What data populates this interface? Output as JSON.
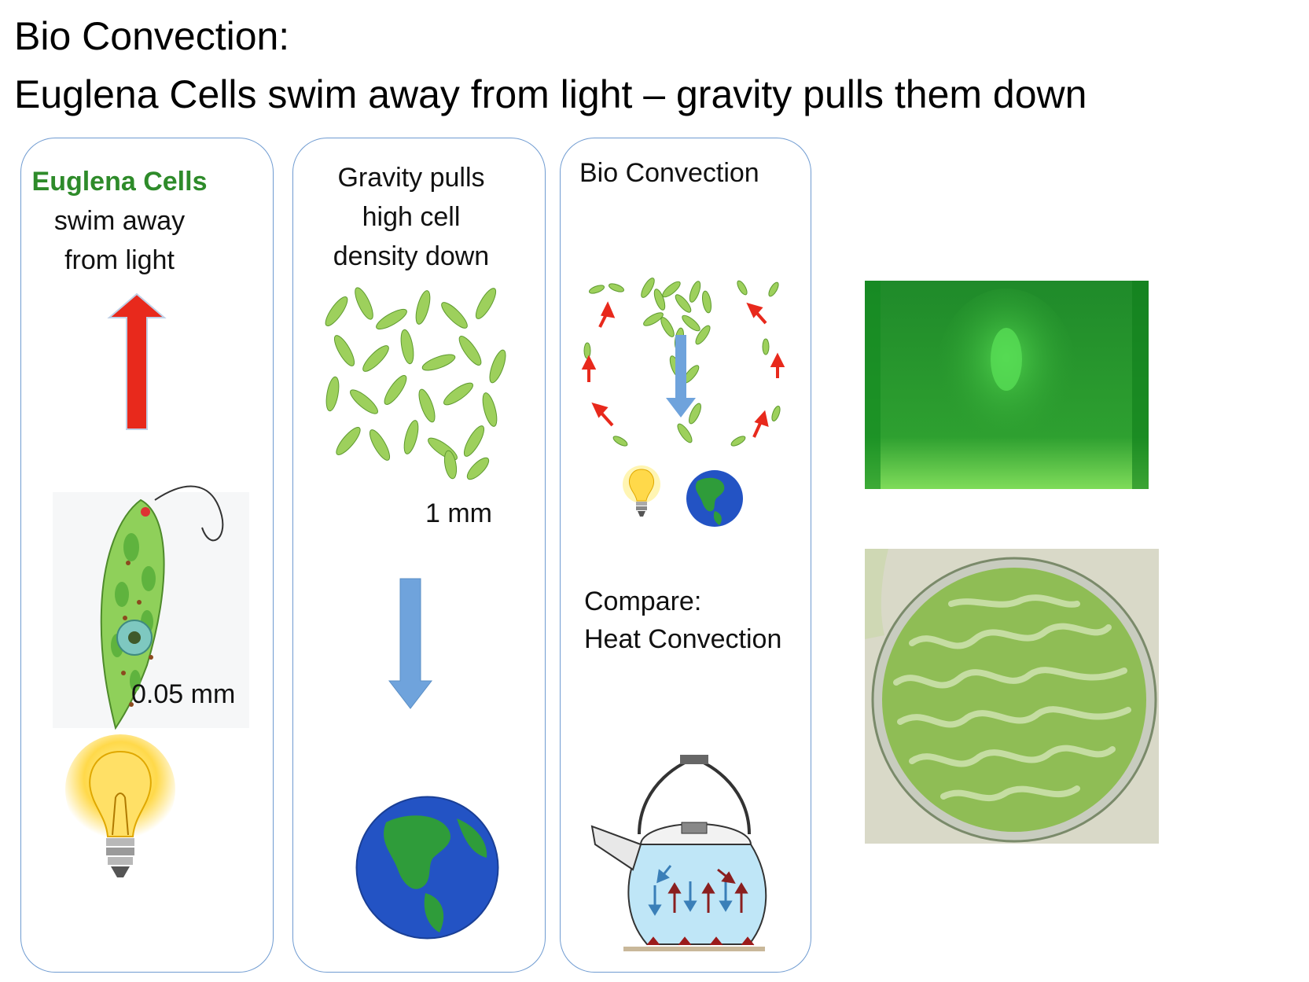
{
  "title": {
    "line1": "Bio Convection:",
    "line2": "Euglena Cells swim away from light – gravity pulls them down"
  },
  "panel1": {
    "heading": "Euglena Cells",
    "heading_color": "#2e8b2a",
    "line2": "swim away",
    "line3": "from light",
    "scale_label": "0.05 mm",
    "arrow_color": "#e8291c"
  },
  "panel2": {
    "line1": "Gravity pulls",
    "line2": "high cell",
    "line3": "density down",
    "scale_label": "1 mm",
    "arrow_color": "#6fa3dc"
  },
  "panel3": {
    "heading": "Bio Convection",
    "compare_line1": "Compare:",
    "compare_line2": "Heat Convection"
  },
  "icons": [
    "up-arrow-icon",
    "euglena-icon",
    "lightbulb-icon",
    "down-arrow-icon",
    "earth-icon",
    "kettle-icon"
  ]
}
